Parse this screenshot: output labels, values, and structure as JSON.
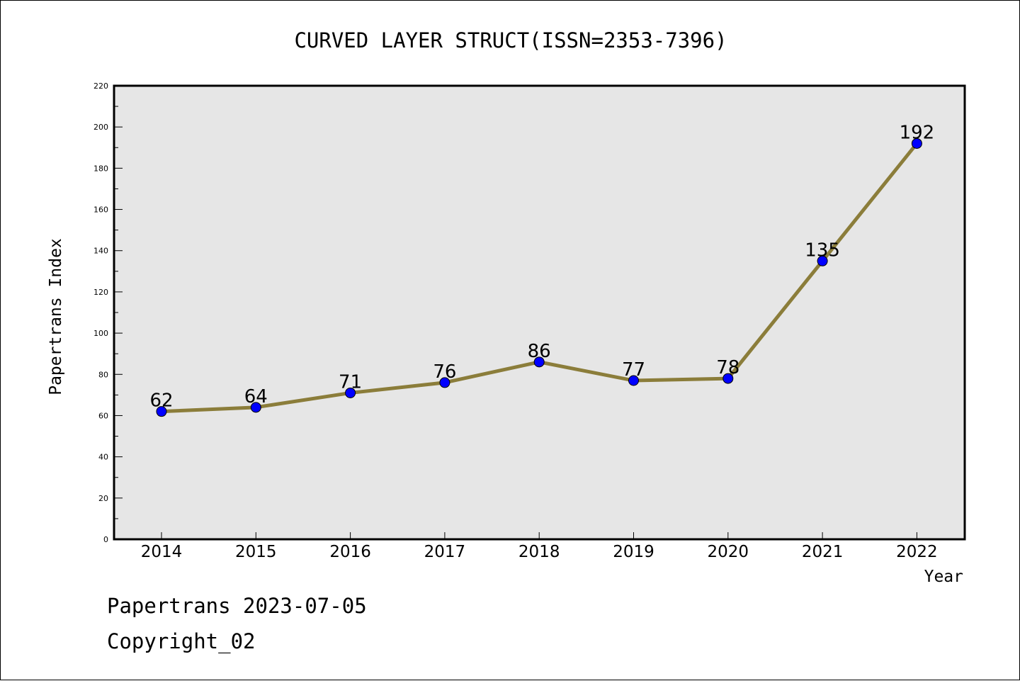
{
  "footer": {
    "line1": "Papertrans 2023-07-05",
    "line2": "Copyright_02"
  },
  "colors": {
    "plot_background": "#e6e6e6",
    "line": "#8b7d3a",
    "marker": "#0000ff"
  },
  "chart_data": {
    "type": "line",
    "title": "CURVED LAYER STRUCT(ISSN=2353-7396)",
    "xlabel": "Year",
    "ylabel": "Papertrans Index",
    "categories": [
      "2014",
      "2015",
      "2016",
      "2017",
      "2018",
      "2019",
      "2020",
      "2021",
      "2022"
    ],
    "values": [
      62,
      64,
      71,
      76,
      86,
      77,
      78,
      135,
      192
    ],
    "data_labels": [
      "62",
      "64",
      "71",
      "76",
      "86",
      "77",
      "78",
      "135",
      "192"
    ],
    "ylim": [
      0,
      220
    ],
    "yticks": [
      0,
      20,
      40,
      60,
      80,
      100,
      120,
      140,
      160,
      180,
      200,
      220
    ],
    "grid": false,
    "legend": "none"
  }
}
